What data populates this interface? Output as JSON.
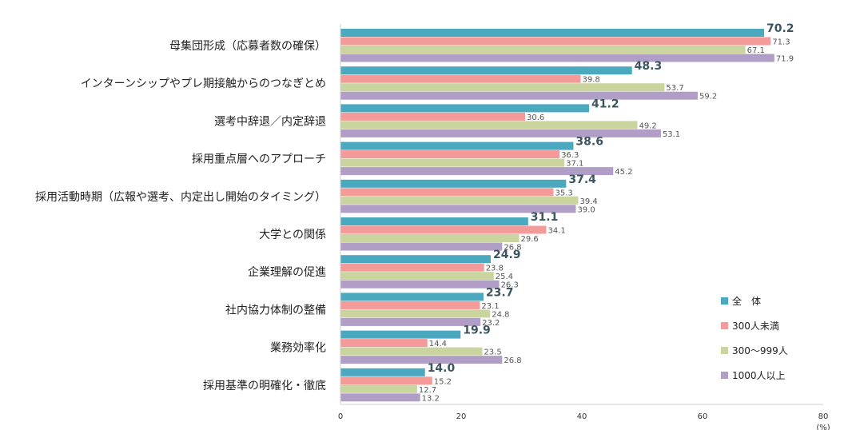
{
  "chart_data": {
    "type": "bar",
    "orientation": "horizontal",
    "categories": [
      "母集団形成（応募者数の確保）",
      "インターンシップやプレ期接触からのつなぎとめ",
      "選考中辞退／内定辞退",
      "採用重点層へのアプローチ",
      "採用活動時期（広報や選考、内定出し開始のタイミング）",
      "大学との関係",
      "企業理解の促進",
      "社内協力体制の整備",
      "業務効率化",
      "採用基準の明確化・徹底"
    ],
    "series": [
      {
        "name": "全　体",
        "color": "#4aa8bf",
        "values": [
          70.2,
          48.3,
          41.2,
          38.6,
          37.4,
          31.1,
          24.9,
          23.7,
          19.9,
          14.0
        ],
        "labels": [
          "70.2",
          "48.3",
          "41.2",
          "38.6",
          "37.4",
          "31.1",
          "24.9",
          "23.7",
          "19.9",
          "14.0"
        ]
      },
      {
        "name": "300人未満",
        "color": "#f49a98",
        "values": [
          71.3,
          39.8,
          30.6,
          36.3,
          35.3,
          34.1,
          23.8,
          23.1,
          14.4,
          15.2
        ],
        "labels": [
          "71.3",
          "39.8",
          "30.6",
          "36.3",
          "35.3",
          "34.1",
          "23.8",
          "23.1",
          "14.4",
          "15.2"
        ]
      },
      {
        "name": "300〜999人",
        "color": "#c9d49e",
        "values": [
          67.1,
          53.7,
          49.2,
          37.1,
          39.4,
          29.6,
          25.4,
          24.8,
          23.5,
          12.7
        ],
        "labels": [
          "67.1",
          "53.7",
          "49.2",
          "37.1",
          "39.4",
          "29.6",
          "25.4",
          "24.8",
          "23.5",
          "12.7"
        ]
      },
      {
        "name": "1000人以上",
        "color": "#b09ec7",
        "values": [
          71.9,
          59.2,
          53.1,
          45.2,
          39.0,
          26.8,
          26.3,
          23.2,
          26.8,
          13.2
        ],
        "labels": [
          "71.9",
          "59.2",
          "53.1",
          "45.2",
          "39.0",
          "26.8",
          "26.3",
          "23.2",
          "26.8",
          "13.2"
        ]
      }
    ],
    "xlim": [
      0,
      80
    ],
    "xticks": [
      "0",
      "20",
      "40",
      "60",
      "80"
    ],
    "xunit": "(%)",
    "legend": "bottom-right",
    "grid": false
  }
}
